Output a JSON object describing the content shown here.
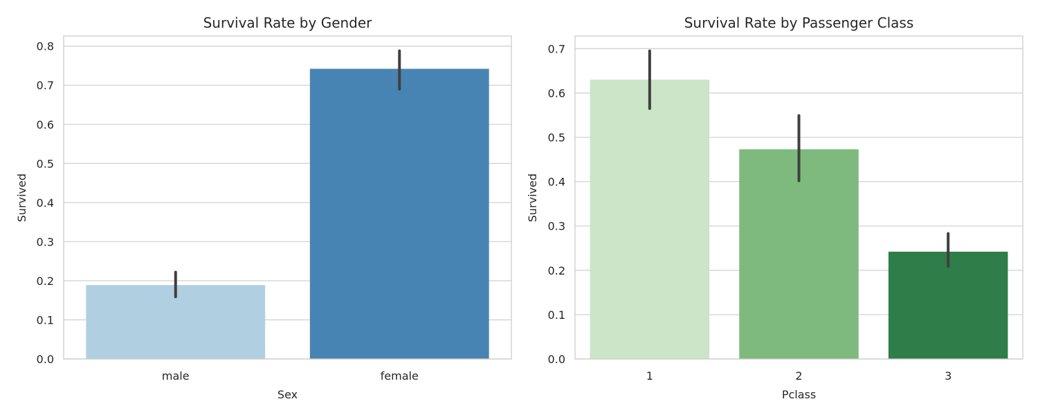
{
  "chart_data": [
    {
      "type": "bar",
      "title": "Survival Rate by Gender",
      "xlabel": "Sex",
      "ylabel": "Survived",
      "categories": [
        "male",
        "female"
      ],
      "values": [
        0.189,
        0.742
      ],
      "ci_low": [
        0.159,
        0.69
      ],
      "ci_high": [
        0.222,
        0.788
      ],
      "colors": [
        "#b0cfe1",
        "#4884b3"
      ],
      "ylim": [
        0,
        0.826
      ],
      "yticks": [
        "0.0",
        "0.1",
        "0.2",
        "0.3",
        "0.4",
        "0.5",
        "0.6",
        "0.7",
        "0.8"
      ],
      "grid": true
    },
    {
      "type": "bar",
      "title": "Survival Rate by Passenger Class",
      "xlabel": "Pclass",
      "ylabel": "Survived",
      "categories": [
        "1",
        "2",
        "3"
      ],
      "values": [
        0.63,
        0.473,
        0.242
      ],
      "ci_low": [
        0.565,
        0.402,
        0.209
      ],
      "ci_high": [
        0.695,
        0.549,
        0.283
      ],
      "colors": [
        "#cce4c7",
        "#7eba7d",
        "#2f7d48"
      ],
      "ylim": [
        0,
        0.7286
      ],
      "yticks": [
        "0.0",
        "0.1",
        "0.2",
        "0.3",
        "0.4",
        "0.5",
        "0.6",
        "0.7"
      ],
      "grid": true
    }
  ]
}
